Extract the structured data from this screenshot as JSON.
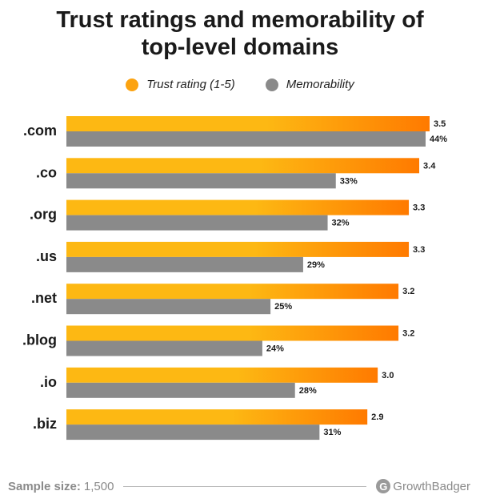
{
  "title_line1": "Trust ratings and memorability of",
  "title_line2": "top-level domains",
  "legend": {
    "trust": "Trust rating (1-5)",
    "memorability": "Memorability"
  },
  "colors": {
    "trust_start": "#fdb813",
    "trust_end": "#ff7a00",
    "memorability": "#8a8a8a"
  },
  "footer": {
    "sample_label": "Sample size:",
    "sample_value": "1,500",
    "brand": "GrowthBadger",
    "brand_icon": "growthbadger-logo-icon"
  },
  "chart_data": {
    "type": "bar",
    "orientation": "horizontal",
    "title": "Trust ratings and memorability of top-level domains",
    "categories": [
      ".com",
      ".co",
      ".org",
      ".us",
      ".net",
      ".blog",
      ".io",
      ".biz"
    ],
    "series": [
      {
        "name": "Trust rating (1-5)",
        "values": [
          3.5,
          3.4,
          3.3,
          3.3,
          3.2,
          3.2,
          3.0,
          2.9
        ],
        "labels": [
          "3.5",
          "3.4",
          "3.3",
          "3.3",
          "3.2",
          "3.2",
          "3.0",
          "2.9"
        ]
      },
      {
        "name": "Memorability",
        "values": [
          44,
          33,
          32,
          29,
          25,
          24,
          28,
          31
        ],
        "labels": [
          "44%",
          "33%",
          "32%",
          "29%",
          "25%",
          "24%",
          "28%",
          "31%"
        ]
      }
    ],
    "grid": false
  }
}
